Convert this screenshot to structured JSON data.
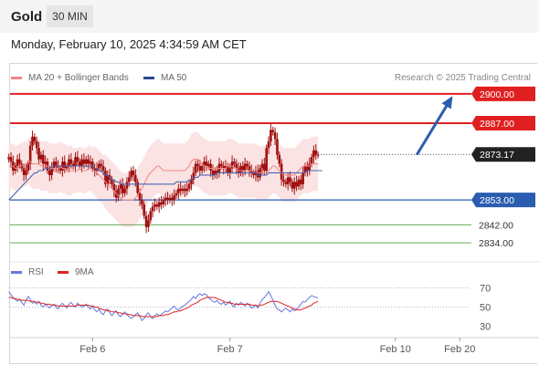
{
  "header": {
    "instrument": "Gold",
    "timeframe": "30 MIN",
    "timestamp": "Monday, February 10, 2025 4:34:59 AM CET"
  },
  "legend": {
    "bb": "MA 20 + Bollinger Bands",
    "ma50": "MA 50",
    "rsi": "RSI",
    "ma9": "9MA",
    "credit": "Research © 2025 Trading Central"
  },
  "colors": {
    "resistance": "#e02020",
    "support": "#2a5db0",
    "secondary_support": "#66aa55",
    "price_tag": "#222222",
    "ma20": "#ee8888",
    "ma50": "#4a66b0",
    "bb_fill": "#fbe3e3",
    "candle": "#a01010",
    "rsi": "#6677dd",
    "ma9": "#dd2222",
    "target_arrow": "#2a5db0"
  },
  "chart_data": {
    "type": "candlestick",
    "price_ylim": [
      2828,
      2906
    ],
    "x_labels": [
      "Feb 6",
      "Feb 7",
      "Feb 10",
      "Feb 20"
    ],
    "x_label_positions": [
      1,
      65,
      142,
      172
    ],
    "x_range": [
      -37,
      177
    ],
    "last_price": "2873.17",
    "levels": [
      {
        "value": 2900.0,
        "label": "2900.00",
        "kind": "resistance"
      },
      {
        "value": 2887.0,
        "label": "2887.00",
        "kind": "resistance"
      },
      {
        "value": 2853.0,
        "label": "2853.00",
        "kind": "support"
      },
      {
        "value": 2842.0,
        "label": "2842.00",
        "kind": "secondary-support"
      },
      {
        "value": 2834.0,
        "label": "2834.00",
        "kind": "secondary-support"
      }
    ],
    "target": {
      "from": [
        152,
        2873.0
      ],
      "to": [
        168,
        2898.0
      ]
    },
    "closes": [
      2872,
      2870,
      2866,
      2868,
      2871,
      2869,
      2867,
      2864,
      2866,
      2869,
      2877,
      2881,
      2879,
      2876,
      2871,
      2873,
      2869,
      2870,
      2866,
      2864,
      2867,
      2870,
      2868,
      2867,
      2866,
      2870,
      2867,
      2868,
      2871,
      2869,
      2868,
      2872,
      2870,
      2868,
      2871,
      2869,
      2871,
      2869,
      2870,
      2867,
      2866,
      2867,
      2869,
      2868,
      2866,
      2860,
      2864,
      2862,
      2860,
      2857,
      2854,
      2858,
      2860,
      2856,
      2858,
      2861,
      2863,
      2866,
      2864,
      2861,
      2856,
      2853,
      2851,
      2846,
      2841,
      2844,
      2848,
      2850,
      2851,
      2850,
      2852,
      2851,
      2853,
      2854,
      2853,
      2854,
      2853,
      2855,
      2856,
      2858,
      2857,
      2858,
      2857,
      2858,
      2860,
      2862,
      2865,
      2869,
      2868,
      2866,
      2868,
      2870,
      2868,
      2869,
      2866,
      2864,
      2866,
      2865,
      2869,
      2868,
      2867,
      2868,
      2865,
      2867,
      2870,
      2869,
      2867,
      2865,
      2868,
      2866,
      2869,
      2868,
      2866,
      2865,
      2864,
      2866,
      2863,
      2867,
      2869,
      2866,
      2876,
      2879,
      2884,
      2883,
      2880,
      2873,
      2869,
      2862,
      2861,
      2860,
      2863,
      2861,
      2858,
      2861,
      2859,
      2862,
      2860,
      2865,
      2868,
      2866,
      2869,
      2872,
      2875,
      2873,
      2873
    ],
    "ma20": [
      2868,
      2868,
      2868,
      2867,
      2867,
      2868,
      2868,
      2869,
      2869,
      2870,
      2870,
      2869,
      2869,
      2869,
      2869,
      2868,
      2868,
      2868,
      2868,
      2867,
      2867,
      2867,
      2867,
      2867,
      2868,
      2867,
      2867,
      2866,
      2866,
      2866,
      2866,
      2866,
      2866,
      2867,
      2866,
      2866,
      2866,
      2867,
      2867,
      2866,
      2866,
      2865,
      2864,
      2863,
      2862,
      2861,
      2860,
      2859,
      2858,
      2857,
      2856,
      2855,
      2854,
      2853,
      2853,
      2853,
      2853,
      2853,
      2853,
      2854,
      2855,
      2857,
      2858,
      2860,
      2862,
      2864,
      2865,
      2866,
      2867,
      2868,
      2868,
      2867,
      2866,
      2866,
      2866,
      2866,
      2866,
      2866,
      2866,
      2866,
      2866,
      2866,
      2866,
      2867,
      2868,
      2870,
      2871,
      2871,
      2871,
      2870,
      2869,
      2868,
      2868,
      2867,
      2867,
      2867,
      2867,
      2867,
      2867,
      2867,
      2867,
      2867,
      2868,
      2868,
      2868,
      2867,
      2867,
      2866,
      2866,
      2866,
      2866,
      2866,
      2866,
      2866,
      2866,
      2866,
      2865,
      2865,
      2865,
      2865,
      2865,
      2866,
      2867,
      2868,
      2868,
      2867,
      2866,
      2865,
      2864,
      2864,
      2864,
      2864,
      2864,
      2864,
      2865,
      2866,
      2867,
      2868,
      2868,
      2868,
      2868,
      2869,
      2869,
      2869,
      2869
    ],
    "ma50": [
      2853,
      2854,
      2855,
      2856,
      2857,
      2858,
      2859,
      2860,
      2861,
      2862,
      2863,
      2864,
      2865,
      2865,
      2866,
      2866,
      2866,
      2867,
      2867,
      2867,
      2868,
      2868,
      2868,
      2868,
      2868,
      2868,
      2868,
      2868,
      2868,
      2868,
      2868,
      2868,
      2868,
      2868,
      2868,
      2868,
      2868,
      2868,
      2868,
      2868,
      2867,
      2867,
      2866,
      2866,
      2865,
      2864,
      2864,
      2863,
      2862,
      2862,
      2861,
      2861,
      2860,
      2860,
      2860,
      2860,
      2860,
      2860,
      2860,
      2860,
      2860,
      2860,
      2860,
      2860,
      2860,
      2860,
      2860,
      2860,
      2860,
      2860,
      2860,
      2860,
      2860,
      2860,
      2860,
      2860,
      2860,
      2860,
      2861,
      2861,
      2861,
      2861,
      2861,
      2861,
      2862,
      2862,
      2863,
      2863,
      2863,
      2864,
      2864,
      2864,
      2864,
      2864,
      2864,
      2864,
      2864,
      2865,
      2865,
      2865,
      2865,
      2865,
      2865,
      2865,
      2865,
      2865,
      2865,
      2865,
      2865,
      2865,
      2865,
      2865,
      2865,
      2865,
      2865,
      2865,
      2864,
      2864,
      2864,
      2864,
      2864,
      2865,
      2865,
      2865,
      2865,
      2865,
      2865,
      2865,
      2865,
      2865,
      2865,
      2865,
      2865,
      2865,
      2865,
      2865,
      2865,
      2865,
      2865,
      2866,
      2866,
      2866,
      2866,
      2866,
      2866,
      2866,
      2866
    ],
    "bb_width": [
      10,
      10,
      10,
      10,
      10,
      10,
      10,
      10,
      10,
      10,
      11,
      11,
      11,
      11,
      11,
      11,
      11,
      11,
      11,
      11,
      11,
      11,
      11,
      11,
      11,
      11,
      11,
      11,
      11,
      11,
      10,
      10,
      10,
      10,
      10,
      10,
      10,
      10,
      10,
      10,
      11,
      11,
      11,
      11,
      11,
      12,
      12,
      12,
      12,
      12,
      12,
      12,
      12,
      12,
      12,
      12,
      12,
      12,
      12,
      12,
      12,
      12,
      12,
      12,
      12,
      12,
      12,
      12,
      12,
      12,
      12,
      12,
      12,
      12,
      12,
      12,
      12,
      12,
      12,
      12,
      12,
      12,
      12,
      12,
      12,
      12,
      12,
      12,
      12,
      12,
      12,
      12,
      12,
      12,
      12,
      12,
      12,
      12,
      12,
      12,
      12,
      12,
      12,
      12,
      12,
      12,
      12,
      12,
      12,
      12,
      12,
      12,
      12,
      12,
      12,
      12,
      12,
      12,
      12,
      12,
      12,
      12,
      12,
      12,
      12,
      12,
      12,
      12,
      12,
      12,
      12,
      12,
      12,
      12,
      12,
      12,
      12,
      12,
      12,
      12,
      12,
      12,
      12,
      12,
      12
    ],
    "rsi_ylim": [
      20,
      80
    ],
    "rsi_ticks": [
      30,
      50,
      70
    ],
    "rsi_dotted": [
      70,
      50
    ],
    "rsi": [
      66,
      63,
      60,
      58,
      56,
      58,
      55,
      52,
      57,
      61,
      58,
      54,
      55,
      53,
      56,
      52,
      50,
      53,
      51,
      49,
      52,
      53,
      50,
      48,
      52,
      54,
      51,
      49,
      53,
      55,
      52,
      50,
      54,
      52,
      50,
      51,
      53,
      50,
      48,
      51,
      47,
      45,
      48,
      44,
      42,
      46,
      48,
      44,
      41,
      44,
      46,
      42,
      40,
      43,
      45,
      42,
      40,
      38,
      40,
      42,
      44,
      40,
      36,
      38,
      42,
      44,
      40,
      38,
      41,
      43,
      41,
      42,
      44,
      46,
      45,
      47,
      49,
      51,
      48,
      47,
      49,
      51,
      52,
      54,
      56,
      58,
      61,
      59,
      62,
      64,
      62,
      64,
      63,
      60,
      58,
      56,
      55,
      57,
      54,
      53,
      55,
      52,
      54,
      56,
      52,
      50,
      54,
      52,
      55,
      53,
      51,
      54,
      52,
      49,
      50,
      52,
      49,
      54,
      58,
      60,
      63,
      66,
      62,
      57,
      52,
      48,
      47,
      45,
      47,
      49,
      47,
      45,
      48,
      46,
      48,
      50,
      53,
      56,
      55,
      58,
      60,
      62,
      61,
      60,
      60
    ],
    "ma9_of_rsi": [
      60,
      60,
      59,
      59,
      58,
      58,
      57,
      57,
      57,
      57,
      56,
      56,
      56,
      55,
      55,
      54,
      54,
      53,
      53,
      53,
      52,
      52,
      52,
      51,
      51,
      51,
      51,
      51,
      51,
      51,
      51,
      51,
      52,
      52,
      52,
      52,
      52,
      52,
      51,
      51,
      50,
      50,
      49,
      48,
      47,
      47,
      46,
      46,
      45,
      45,
      45,
      44,
      44,
      43,
      43,
      43,
      42,
      42,
      41,
      41,
      41,
      41,
      40,
      40,
      40,
      40,
      40,
      40,
      40,
      40,
      41,
      41,
      41,
      42,
      42,
      43,
      44,
      45,
      45,
      46,
      46,
      47,
      48,
      49,
      50,
      52,
      53,
      54,
      55,
      57,
      58,
      59,
      60,
      60,
      60,
      60,
      60,
      59,
      58,
      57,
      56,
      55,
      55,
      54,
      54,
      53,
      53,
      53,
      53,
      53,
      53,
      53,
      53,
      52,
      52,
      52,
      51,
      52,
      52,
      53,
      54,
      55,
      56,
      56,
      56,
      56,
      55,
      54,
      53,
      52,
      51,
      50,
      49,
      48,
      47,
      47,
      47,
      48,
      49,
      50,
      51,
      52,
      54,
      55,
      56
    ]
  }
}
